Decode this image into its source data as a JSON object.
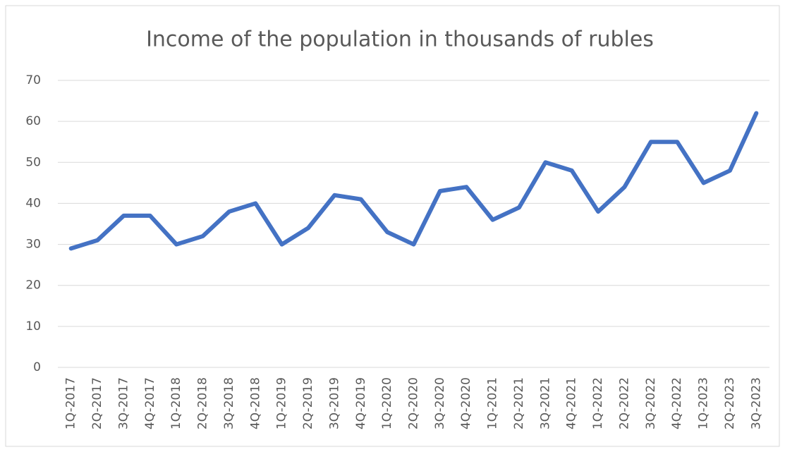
{
  "chart_data": {
    "type": "line",
    "title": "Income of the population in thousands of rubles",
    "categories": [
      "1Q-2017",
      "2Q-2017",
      "3Q-2017",
      "4Q-2017",
      "1Q-2018",
      "2Q-2018",
      "3Q-2018",
      "4Q-2018",
      "1Q-2019",
      "2Q-2019",
      "3Q-2019",
      "4Q-2019",
      "1Q-2020",
      "2Q-2020",
      "3Q-2020",
      "4Q-2020",
      "1Q-2021",
      "2Q-2021",
      "3Q-2021",
      "4Q-2021",
      "1Q-2022",
      "2Q-2022",
      "3Q-2022",
      "4Q-2022",
      "1Q-2023",
      "2Q-2023",
      "3Q-2023"
    ],
    "values": [
      29,
      31,
      37,
      37,
      30,
      32,
      38,
      40,
      30,
      34,
      42,
      41,
      33,
      30,
      43,
      44,
      36,
      39,
      50,
      48,
      38,
      44,
      55,
      55,
      45,
      48,
      62
    ],
    "color": "#4472c4",
    "ylim": [
      0,
      70
    ],
    "yticks": [
      0,
      10,
      20,
      30,
      40,
      50,
      60,
      70
    ],
    "grid": true
  }
}
